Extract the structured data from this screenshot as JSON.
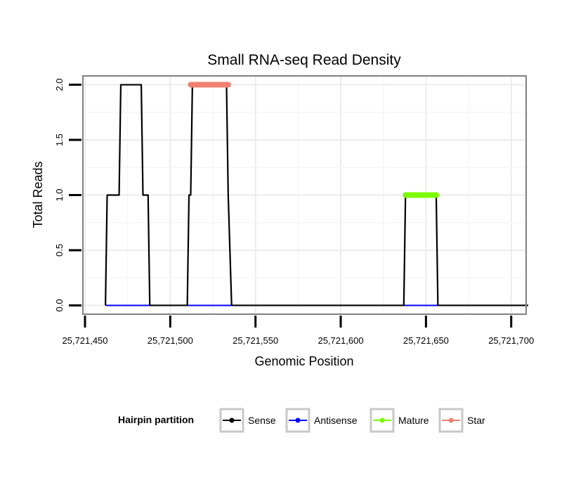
{
  "chart_data": {
    "type": "line",
    "title": "Small RNA-seq Read Density",
    "xlabel": "Genomic Position",
    "ylabel": "Total Reads",
    "xlim": [
      25721450,
      25721710
    ],
    "ylim": [
      -0.08,
      2.08
    ],
    "x_ticks": [
      25721450,
      25721500,
      25721550,
      25721600,
      25721650,
      25721700
    ],
    "x_tick_labels": [
      "25,721,450",
      "25,721,500",
      "25,721,550",
      "25,721,600",
      "25,721,650",
      "25,721,700"
    ],
    "y_ticks": [
      0,
      0.5,
      1,
      1.5,
      2
    ],
    "y_tick_labels": [
      "0.0",
      "0.5",
      "1.0",
      "1.5",
      "2.0"
    ],
    "grid": true,
    "series": [
      {
        "name": "Sense",
        "color": "#000000",
        "x": [
          25721462,
          25721463,
          25721470,
          25721471,
          25721483,
          25721484,
          25721487,
          25721488,
          25721510,
          25721511,
          25721512,
          25721513,
          25721533,
          25721534,
          25721536,
          25721537,
          25721637,
          25721638,
          25721656,
          25721657,
          25721710
        ],
        "y": [
          0,
          1,
          1,
          2,
          2,
          1,
          1,
          0,
          0,
          1,
          1,
          2,
          2,
          1,
          0,
          0,
          0,
          1,
          1,
          0,
          0
        ]
      },
      {
        "name": "Antisense",
        "color": "#0000ff",
        "segments": [
          [
            25721462,
            25721488
          ],
          [
            25721510,
            25721536
          ],
          [
            25721637,
            25721657
          ]
        ],
        "value": 0
      },
      {
        "name": "Mature",
        "color": "#7cfc00",
        "segments": [
          [
            25721638,
            25721656
          ]
        ],
        "value": 1
      },
      {
        "name": "Star",
        "color": "#f08070",
        "segments": [
          [
            25721512,
            25721534
          ]
        ],
        "value": 2
      }
    ],
    "legend": {
      "title": "Hairpin partition",
      "position": "bottom",
      "entries": [
        {
          "label": "Sense",
          "color": "#000000"
        },
        {
          "label": "Antisense",
          "color": "#0000ff"
        },
        {
          "label": "Mature",
          "color": "#7cfc00"
        },
        {
          "label": "Star",
          "color": "#f08070"
        }
      ]
    }
  }
}
